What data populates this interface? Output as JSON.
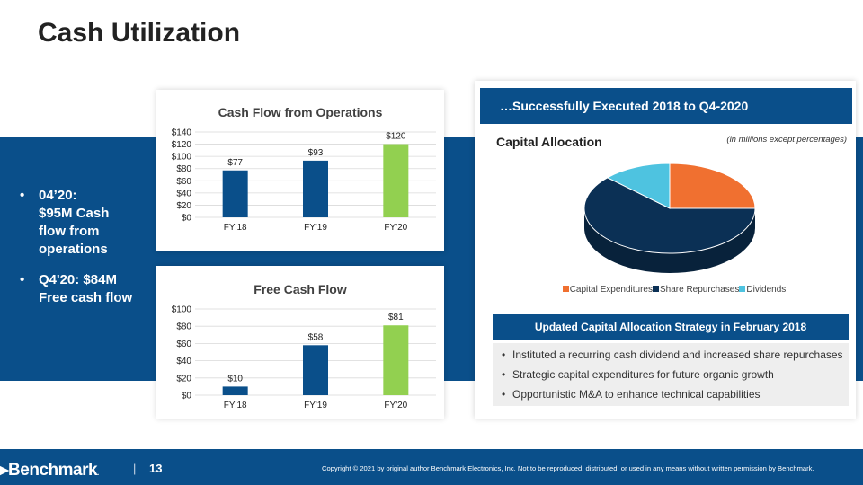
{
  "page": {
    "title": "Cash Utilization",
    "page_number": "13"
  },
  "left_panel": {
    "bullets": [
      {
        "lines": [
          "04’20:",
          "$95M Cash",
          "flow from",
          "operations"
        ]
      },
      {
        "lines": [
          "Q4'20: $84M",
          "Free cash flow"
        ]
      }
    ]
  },
  "colors": {
    "navy": "#0a4f8a",
    "fy18_fy19_bar": "#0a4f8a",
    "fy20_bar": "#92d050",
    "orange": "#f07030",
    "dark_navy": "#0b3055",
    "light_blue": "#4ec3e0"
  },
  "chart_data": [
    {
      "type": "bar",
      "title": "Cash Flow from Operations",
      "categories": [
        "FY'18",
        "FY'19",
        "FY'20"
      ],
      "values": [
        77,
        93,
        120
      ],
      "data_labels": [
        "$77",
        "$93",
        "$120"
      ],
      "yticks": [
        "$0",
        "$20",
        "$40",
        "$60",
        "$80",
        "$100",
        "$120",
        "$140"
      ],
      "ylim": [
        0,
        140
      ],
      "grid": true
    },
    {
      "type": "bar",
      "title": "Free Cash Flow",
      "categories": [
        "FY'18",
        "FY'19",
        "FY'20"
      ],
      "values": [
        10,
        58,
        81
      ],
      "data_labels": [
        "$10",
        "$58",
        "$81"
      ],
      "yticks": [
        "$0",
        "$20",
        "$40",
        "$60",
        "$80",
        "$100"
      ],
      "ylim": [
        0,
        100
      ],
      "grid": true
    },
    {
      "type": "pie",
      "title": "Capital Allocation",
      "categories": [
        "Capital Expenditures",
        "Share Repurchases",
        "Dividends"
      ],
      "values": [
        25,
        62,
        13
      ],
      "colors": [
        "#f07030",
        "#0b3055",
        "#4ec3e0"
      ],
      "legend_position": "bottom"
    }
  ],
  "capital": {
    "header": "…Successfully Executed 2018 to Q4-2020",
    "title": "Capital Allocation",
    "note": "(in millions except percentages)",
    "legend": [
      "Capital Expenditures",
      "Share Repurchases",
      "Dividends"
    ]
  },
  "strategy": {
    "title": "Updated Capital Allocation Strategy in February 2018",
    "items": [
      "Instituted a recurring cash dividend and increased share repurchases",
      "Strategic capital expenditures for future organic growth",
      "Opportunistic M&A to enhance technical capabilities"
    ]
  },
  "footer": {
    "logo": "Benchmark",
    "separator": "|",
    "copyright": "Copyright © 2021 by original author Benchmark Electronics, Inc. Not to be reproduced, distributed, or used in any means without written permission by Benchmark."
  }
}
